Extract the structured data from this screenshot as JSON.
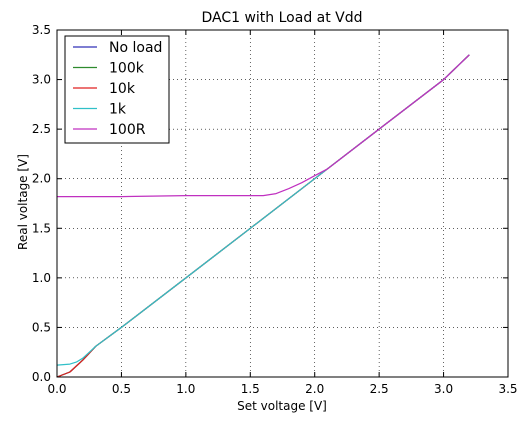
{
  "chart_data": {
    "type": "line",
    "title": "DAC1 with Load at Vdd",
    "xlabel": "Set voltage [V]",
    "ylabel": "Real voltage [V]",
    "xlim": [
      0.0,
      3.5
    ],
    "ylim": [
      0.0,
      3.5
    ],
    "xticks": [
      "0.0",
      "0.5",
      "1.0",
      "1.5",
      "2.0",
      "2.5",
      "3.0",
      "3.5"
    ],
    "yticks": [
      "0.0",
      "0.5",
      "1.0",
      "1.5",
      "2.0",
      "2.5",
      "3.0",
      "3.5"
    ],
    "grid": true,
    "legend_position": "top-left",
    "series": [
      {
        "name": "No load",
        "color": "#3030b8",
        "x": [
          0.0,
          0.1,
          0.2,
          0.3,
          0.5,
          1.0,
          1.5,
          2.0,
          2.5,
          3.0,
          3.2
        ],
        "y": [
          0.0,
          0.05,
          0.17,
          0.31,
          0.5,
          1.0,
          1.5,
          2.0,
          2.5,
          3.0,
          3.25
        ]
      },
      {
        "name": "100k",
        "color": "#2e8b2e",
        "x": [
          0.0,
          0.1,
          0.2,
          0.3,
          0.5,
          1.0,
          1.5,
          2.0,
          2.5,
          3.0,
          3.2
        ],
        "y": [
          0.0,
          0.05,
          0.17,
          0.31,
          0.5,
          1.0,
          1.5,
          2.0,
          2.5,
          3.0,
          3.25
        ]
      },
      {
        "name": "10k",
        "color": "#e02020",
        "x": [
          0.0,
          0.1,
          0.2,
          0.3,
          0.5,
          1.0,
          1.5,
          2.0,
          2.5,
          3.0,
          3.2
        ],
        "y": [
          0.0,
          0.05,
          0.17,
          0.31,
          0.5,
          1.0,
          1.5,
          2.0,
          2.5,
          3.0,
          3.25
        ]
      },
      {
        "name": "1k",
        "color": "#30c0c8",
        "x": [
          0.0,
          0.1,
          0.15,
          0.2,
          0.3,
          0.5,
          1.0,
          1.5,
          2.0,
          2.5,
          3.0,
          3.2
        ],
        "y": [
          0.12,
          0.13,
          0.15,
          0.19,
          0.31,
          0.5,
          1.0,
          1.5,
          2.0,
          2.5,
          3.0,
          3.25
        ]
      },
      {
        "name": "100R",
        "color": "#c030c0",
        "x": [
          0.0,
          0.5,
          1.0,
          1.5,
          1.6,
          1.7,
          1.8,
          1.9,
          2.0,
          2.1,
          2.5,
          3.0,
          3.2
        ],
        "y": [
          1.82,
          1.82,
          1.83,
          1.83,
          1.83,
          1.85,
          1.9,
          1.96,
          2.03,
          2.1,
          2.5,
          3.0,
          3.25
        ]
      }
    ]
  }
}
